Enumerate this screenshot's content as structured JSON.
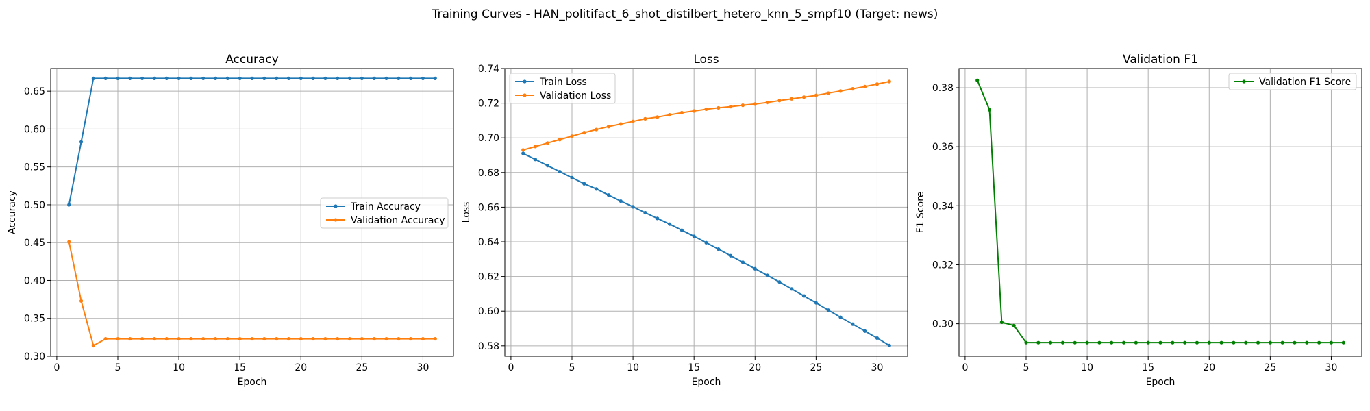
{
  "figure": {
    "suptitle": "Training Curves - HAN_politifact_6_shot_distilbert_hetero_knn_5_smpf10 (Target: news)"
  },
  "chart_data": [
    {
      "type": "line",
      "title": "Accuracy",
      "xlabel": "Epoch",
      "ylabel": "Accuracy",
      "xlim": [
        -0.5,
        32.5
      ],
      "ylim": [
        0.3,
        0.68
      ],
      "xticks": [
        0,
        5,
        10,
        15,
        20,
        25,
        30
      ],
      "yticks": [
        0.3,
        0.35,
        0.4,
        0.45,
        0.5,
        0.55,
        0.6,
        0.65
      ],
      "ytick_labels": [
        "0.30",
        "0.35",
        "0.40",
        "0.45",
        "0.50",
        "0.55",
        "0.60",
        "0.65"
      ],
      "grid": true,
      "legend": "center-right",
      "x": [
        1,
        2,
        3,
        4,
        5,
        6,
        7,
        8,
        9,
        10,
        11,
        12,
        13,
        14,
        15,
        16,
        17,
        18,
        19,
        20,
        21,
        22,
        23,
        24,
        25,
        26,
        27,
        28,
        29,
        30,
        31
      ],
      "series": [
        {
          "name": "Train Accuracy",
          "color": "#1f77b4",
          "values": [
            0.5,
            0.583,
            0.667,
            0.667,
            0.667,
            0.667,
            0.667,
            0.667,
            0.667,
            0.667,
            0.667,
            0.667,
            0.667,
            0.667,
            0.667,
            0.667,
            0.667,
            0.667,
            0.667,
            0.667,
            0.667,
            0.667,
            0.667,
            0.667,
            0.667,
            0.667,
            0.667,
            0.667,
            0.667,
            0.667,
            0.667
          ]
        },
        {
          "name": "Validation Accuracy",
          "color": "#ff7f0e",
          "values": [
            0.451,
            0.373,
            0.314,
            0.323,
            0.323,
            0.323,
            0.323,
            0.323,
            0.323,
            0.323,
            0.323,
            0.323,
            0.323,
            0.323,
            0.323,
            0.323,
            0.323,
            0.323,
            0.323,
            0.323,
            0.323,
            0.323,
            0.323,
            0.323,
            0.323,
            0.323,
            0.323,
            0.323,
            0.323,
            0.323,
            0.323
          ]
        }
      ]
    },
    {
      "type": "line",
      "title": "Loss",
      "xlabel": "Epoch",
      "ylabel": "Loss",
      "xlim": [
        -0.5,
        32.5
      ],
      "ylim": [
        0.574,
        0.74
      ],
      "xticks": [
        0,
        5,
        10,
        15,
        20,
        25,
        30
      ],
      "yticks": [
        0.58,
        0.6,
        0.62,
        0.64,
        0.66,
        0.68,
        0.7,
        0.72,
        0.74
      ],
      "ytick_labels": [
        "0.58",
        "0.60",
        "0.62",
        "0.64",
        "0.66",
        "0.68",
        "0.70",
        "0.72",
        "0.74"
      ],
      "grid": true,
      "legend": "upper-left",
      "x": [
        1,
        2,
        3,
        4,
        5,
        6,
        7,
        8,
        9,
        10,
        11,
        12,
        13,
        14,
        15,
        16,
        17,
        18,
        19,
        20,
        21,
        22,
        23,
        24,
        25,
        26,
        27,
        28,
        29,
        30,
        31
      ],
      "series": [
        {
          "name": "Train Loss",
          "color": "#1f77b4",
          "values": [
            0.691,
            0.6875,
            0.684,
            0.6805,
            0.677,
            0.6735,
            0.6705,
            0.667,
            0.6635,
            0.6602,
            0.6568,
            0.6535,
            0.6502,
            0.6467,
            0.6432,
            0.6395,
            0.6358,
            0.632,
            0.6282,
            0.6245,
            0.6207,
            0.6168,
            0.6128,
            0.6088,
            0.6048,
            0.6006,
            0.5965,
            0.5925,
            0.5885,
            0.5845,
            0.5802
          ]
        },
        {
          "name": "Validation Loss",
          "color": "#ff7f0e",
          "values": [
            0.693,
            0.695,
            0.697,
            0.699,
            0.701,
            0.703,
            0.7048,
            0.7065,
            0.708,
            0.7095,
            0.711,
            0.712,
            0.7133,
            0.7145,
            0.7155,
            0.7165,
            0.7173,
            0.718,
            0.7188,
            0.7195,
            0.7204,
            0.7215,
            0.7225,
            0.7235,
            0.7245,
            0.7258,
            0.727,
            0.7283,
            0.7296,
            0.731,
            0.7325
          ]
        }
      ]
    },
    {
      "type": "line",
      "title": "Validation F1",
      "xlabel": "Epoch",
      "ylabel": "F1 Score",
      "xlim": [
        -0.5,
        32.5
      ],
      "ylim": [
        0.289,
        0.3865
      ],
      "xticks": [
        0,
        5,
        10,
        15,
        20,
        25,
        30
      ],
      "yticks": [
        0.3,
        0.32,
        0.34,
        0.36,
        0.38
      ],
      "ytick_labels": [
        "0.30",
        "0.32",
        "0.34",
        "0.36",
        "0.38"
      ],
      "grid": true,
      "legend": "upper-right",
      "x": [
        1,
        2,
        3,
        4,
        5,
        6,
        7,
        8,
        9,
        10,
        11,
        12,
        13,
        14,
        15,
        16,
        17,
        18,
        19,
        20,
        21,
        22,
        23,
        24,
        25,
        26,
        27,
        28,
        29,
        30,
        31
      ],
      "series": [
        {
          "name": "Validation F1 Score",
          "color": "#008000",
          "values": [
            0.3825,
            0.3725,
            0.3005,
            0.2994,
            0.2936,
            0.2936,
            0.2936,
            0.2936,
            0.2936,
            0.2936,
            0.2936,
            0.2936,
            0.2936,
            0.2936,
            0.2936,
            0.2936,
            0.2936,
            0.2936,
            0.2936,
            0.2936,
            0.2936,
            0.2936,
            0.2936,
            0.2936,
            0.2936,
            0.2936,
            0.2936,
            0.2936,
            0.2936,
            0.2936,
            0.2936
          ]
        }
      ]
    }
  ]
}
